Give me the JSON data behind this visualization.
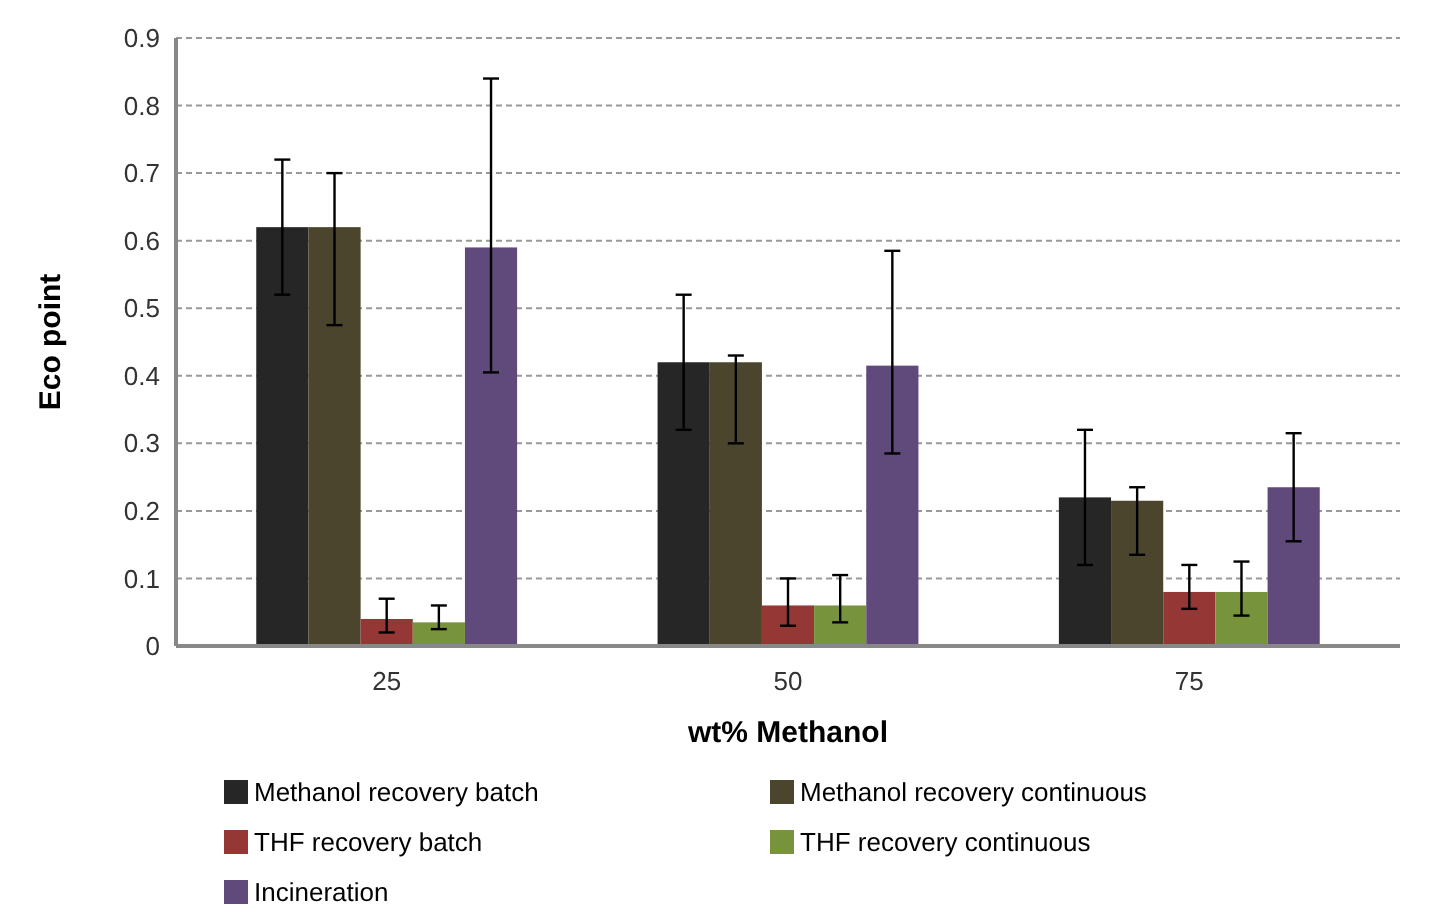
{
  "chart_data": {
    "type": "bar",
    "xlabel": "wt% Methanol",
    "ylabel": "Eco point",
    "categories": [
      "25",
      "50",
      "75"
    ],
    "series": [
      {
        "name": "Methanol recovery batch",
        "color": "#262626",
        "values": [
          0.62,
          0.42,
          0.22
        ],
        "errors": [
          [
            0.52,
            0.72
          ],
          [
            0.32,
            0.52
          ],
          [
            0.12,
            0.32
          ]
        ]
      },
      {
        "name": "Methanol recovery continuous",
        "color": "#4a452c",
        "values": [
          0.62,
          0.42,
          0.215
        ],
        "errors": [
          [
            0.475,
            0.7
          ],
          [
            0.3,
            0.43
          ],
          [
            0.135,
            0.235
          ]
        ]
      },
      {
        "name": "THF recovery batch",
        "color": "#953735",
        "values": [
          0.04,
          0.06,
          0.08
        ],
        "errors": [
          [
            0.02,
            0.07
          ],
          [
            0.03,
            0.1
          ],
          [
            0.055,
            0.12
          ]
        ]
      },
      {
        "name": "THF recovery continuous",
        "color": "#77933c",
        "values": [
          0.035,
          0.06,
          0.08
        ],
        "errors": [
          [
            0.025,
            0.06
          ],
          [
            0.035,
            0.105
          ],
          [
            0.045,
            0.125
          ]
        ]
      },
      {
        "name": "Incineration",
        "color": "#604a7b",
        "values": [
          0.59,
          0.415,
          0.235
        ],
        "errors": [
          [
            0.405,
            0.84
          ],
          [
            0.285,
            0.585
          ],
          [
            0.155,
            0.315
          ]
        ]
      }
    ],
    "ylim": [
      0,
      0.9
    ],
    "yticks": [
      0,
      0.1,
      0.2,
      0.3,
      0.4,
      0.5,
      0.6,
      0.7,
      0.8,
      0.9
    ],
    "grid": "y",
    "legend": "bottom"
  }
}
